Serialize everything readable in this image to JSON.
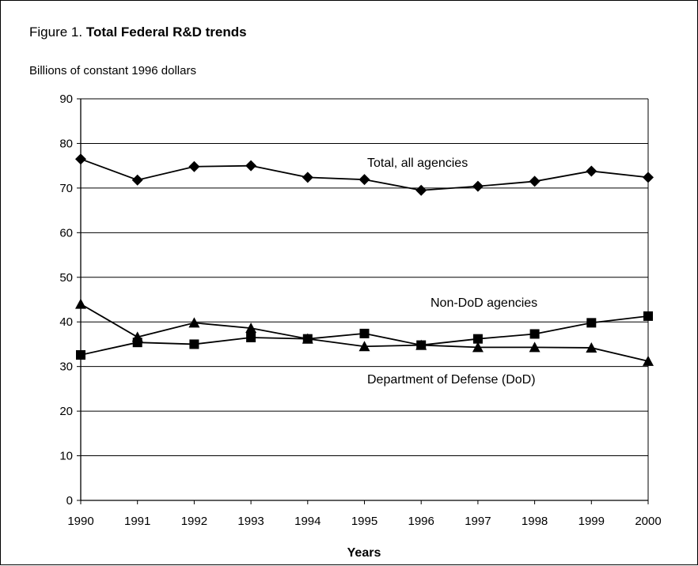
{
  "figure": {
    "title_prefix": "Figure 1.",
    "title_main": "Total Federal R&D trends",
    "ylabel": "Billions of constant 1996 dollars",
    "xlabel": "Years"
  },
  "chart_data": {
    "type": "line",
    "title": "Total Federal R&D trends",
    "xlabel": "Years",
    "ylabel": "Billions of constant 1996 dollars",
    "x": [
      1990,
      1991,
      1992,
      1993,
      1994,
      1995,
      1996,
      1997,
      1998,
      1999,
      2000
    ],
    "ylim": [
      0,
      90
    ],
    "yticks": [
      0,
      10,
      20,
      30,
      40,
      50,
      60,
      70,
      80,
      90
    ],
    "grid": true,
    "series": [
      {
        "name": "Total, all agencies",
        "marker": "diamond",
        "values": [
          76.5,
          71.8,
          74.8,
          75.0,
          72.4,
          71.9,
          69.5,
          70.4,
          71.5,
          73.8,
          72.4
        ]
      },
      {
        "name": "Non-DoD agencies",
        "marker": "square",
        "values": [
          32.6,
          35.4,
          35.0,
          36.5,
          36.2,
          37.4,
          34.8,
          36.2,
          37.3,
          39.8,
          41.3
        ]
      },
      {
        "name": "Department of Defense (DoD)",
        "marker": "triangle",
        "values": [
          44.0,
          36.6,
          39.8,
          38.6,
          36.2,
          34.5,
          34.8,
          34.3,
          34.3,
          34.2,
          31.2
        ]
      }
    ]
  }
}
